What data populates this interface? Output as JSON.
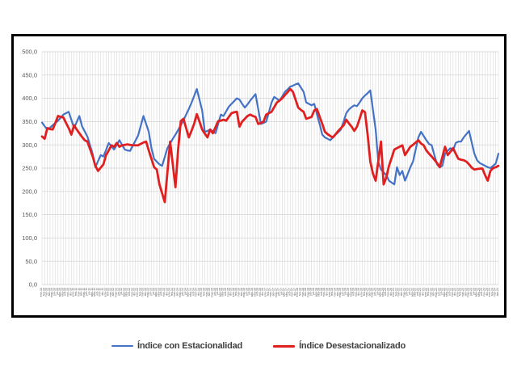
{
  "page": {
    "background": "#ffffff"
  },
  "chart_data": {
    "type": "line",
    "title": "",
    "xlabel": "",
    "ylabel": "",
    "ylim": [
      0,
      500
    ],
    "y_tick_step": 50,
    "y_ticks": [
      "500,0",
      "450,0",
      "400,0",
      "350,0",
      "300,0",
      "250,0",
      "200,0",
      "150,0",
      "100,0",
      "50,0",
      "0,0"
    ],
    "grid": "both",
    "grid_color": "#d9d9d9",
    "axis_color": "#595959",
    "legend_position": "bottom",
    "x": [
      "ene-10",
      "feb-10",
      "mar-10",
      "abr-10",
      "may-10",
      "jun-10",
      "jul-10",
      "ago-10",
      "sep-10",
      "oct-10",
      "nov-10",
      "dic-10",
      "ene-11",
      "feb-11",
      "mar-11",
      "abr-11",
      "may-11",
      "jun-11",
      "jul-11",
      "ago-11",
      "sep-11",
      "oct-11",
      "nov-11",
      "dic-11",
      "ene-12",
      "feb-12",
      "mar-12",
      "abr-12",
      "may-12",
      "jun-12",
      "jul-12",
      "ago-12",
      "sep-12",
      "oct-12",
      "nov-12",
      "dic-12",
      "ene-13",
      "feb-13",
      "mar-13",
      "abr-13",
      "may-13",
      "jun-13",
      "jul-13",
      "ago-13",
      "sep-13",
      "oct-13",
      "nov-13",
      "dic-13",
      "ene-14",
      "feb-14",
      "mar-14",
      "abr-14",
      "may-14",
      "jun-14",
      "jul-14",
      "ago-14",
      "sep-14",
      "oct-14",
      "nov-14",
      "dic-14",
      "ene-15",
      "feb-15",
      "mar-15",
      "abr-15",
      "may-15",
      "jun-15",
      "jul-15",
      "ago-15",
      "sep-15",
      "oct-15",
      "nov-15",
      "dic-15",
      "ene-16",
      "feb-16",
      "mar-16",
      "abr-16",
      "may-16",
      "jun-16",
      "jul-16",
      "ago-16",
      "sep-16",
      "oct-16",
      "nov-16",
      "dic-16",
      "ene-17",
      "feb-17",
      "mar-17",
      "abr-17",
      "may-17",
      "jun-17",
      "jul-17",
      "ago-17",
      "sep-17",
      "oct-17",
      "nov-17",
      "dic-17",
      "ene-18",
      "feb-18",
      "mar-18",
      "abr-18",
      "may-18",
      "jun-18",
      "jul-18",
      "ago-18",
      "sep-18",
      "oct-18",
      "nov-18",
      "dic-18",
      "ene-19",
      "feb-19",
      "mar-19",
      "abr-19",
      "may-19",
      "jun-19",
      "jul-19",
      "ago-19",
      "sep-19",
      "oct-19",
      "nov-19",
      "dic-19",
      "ene-20",
      "feb-20",
      "mar-20",
      "abr-20",
      "may-20",
      "jun-20",
      "jul-20",
      "ago-20",
      "sep-20",
      "oct-20",
      "nov-20",
      "dic-20",
      "ene-21",
      "feb-21",
      "mar-21",
      "abr-21",
      "may-21",
      "jun-21",
      "jul-21",
      "ago-21",
      "sep-21",
      "oct-21",
      "nov-21",
      "dic-21",
      "ene-22",
      "feb-22",
      "mar-22",
      "abr-22",
      "may-22",
      "jun-22",
      "jul-22",
      "ago-22",
      "sep-22",
      "oct-22",
      "nov-22",
      "dic-22",
      "ene-23",
      "feb-23",
      "mar-23",
      "abr-23",
      "may-23",
      "jun-23",
      "jul-23",
      "ago-23",
      "sep-23",
      "oct-23",
      "nov-23",
      "dic-23",
      "ene-24",
      "feb-24",
      "mar-24",
      "abr-24"
    ],
    "series": [
      {
        "name": "Índice con Estacionalidad",
        "color": "#4472c4",
        "width": 2.2,
        "values": [
          348,
          340,
          333,
          337,
          342,
          347,
          352,
          358,
          365,
          368,
          371,
          354,
          336,
          349,
          362,
          340,
          329,
          318,
          299,
          280,
          252,
          265,
          278,
          275,
          289,
          304,
          297,
          290,
          300,
          310,
          300,
          290,
          288,
          287,
          298,
          309,
          320,
          341,
          362,
          345,
          328,
          293,
          270,
          264,
          258,
          255,
          274,
          293,
          303,
          313,
          322,
          332,
          342,
          353,
          365,
          377,
          390,
          405,
          420,
          397,
          374,
          328,
          330,
          333,
          329,
          325,
          345,
          365,
          362,
          372,
          382,
          388,
          394,
          400,
          397,
          388,
          380,
          387,
          395,
          402,
          409,
          377,
          345,
          347,
          350,
          370,
          391,
          403,
          399,
          395,
          404,
          414,
          419,
          425,
          427,
          430,
          432,
          423,
          414,
          391,
          388,
          385,
          388,
          366,
          345,
          322,
          316,
          313,
          310,
          316,
          322,
          327,
          333,
          350,
          368,
          376,
          381,
          385,
          383,
          391,
          400,
          406,
          411,
          417,
          375,
          333,
          264,
          247,
          241,
          235,
          223,
          219,
          215,
          252,
          235,
          244,
          223,
          237,
          252,
          264,
          290,
          316,
          328,
          319,
          310,
          302,
          299,
          278,
          258,
          252,
          255,
          281,
          287,
          293,
          288,
          304,
          307,
          307,
          316,
          323,
          330,
          305,
          281,
          267,
          261,
          258,
          255,
          252,
          250,
          255,
          260,
          281
        ]
      },
      {
        "name": "Índice Desestacionalizado",
        "color": "#e02020",
        "width": 2.8,
        "values": [
          318,
          313,
          336,
          334,
          333,
          347,
          362,
          360,
          359,
          347,
          336,
          322,
          342,
          333,
          325,
          317,
          310,
          307,
          291,
          275,
          255,
          244,
          251,
          258,
          278,
          288,
          299,
          296,
          304,
          296,
          299,
          300,
          301,
          300,
          299,
          299,
          299,
          302,
          305,
          307,
          288,
          270,
          252,
          247,
          215,
          196,
          177,
          242,
          307,
          258,
          209,
          290,
          351,
          356,
          336,
          316,
          330,
          345,
          366,
          350,
          333,
          324,
          316,
          333,
          325,
          338,
          351,
          352,
          354,
          352,
          360,
          368,
          370,
          371,
          339,
          350,
          356,
          362,
          365,
          362,
          360,
          345,
          347,
          350,
          365,
          368,
          371,
          381,
          391,
          395,
          400,
          407,
          413,
          420,
          414,
          397,
          380,
          375,
          371,
          356,
          358,
          360,
          374,
          377,
          361,
          345,
          328,
          323,
          319,
          316,
          323,
          330,
          336,
          342,
          354,
          346,
          339,
          330,
          339,
          356,
          374,
          370,
          322,
          264,
          238,
          223,
          265,
          307,
          215,
          230,
          255,
          272,
          290,
          293,
          296,
          299,
          278,
          287,
          296,
          300,
          305,
          310,
          303,
          299,
          288,
          281,
          275,
          268,
          261,
          252,
          274,
          296,
          278,
          285,
          293,
          281,
          270,
          268,
          267,
          264,
          258,
          251,
          247,
          248,
          249,
          249,
          235,
          223,
          244,
          250,
          252,
          255
        ]
      }
    ]
  }
}
